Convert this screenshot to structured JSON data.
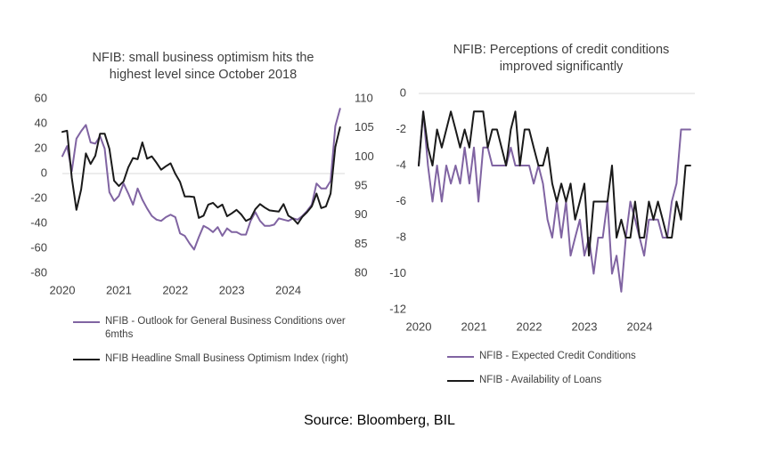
{
  "source": "Source: Bloomberg, BIL",
  "chart_data": [
    {
      "type": "line",
      "title": "NFIB: small business optimism hits the highest level since October 2018",
      "title_lines": [
        "NFIB: small business optimism hits the",
        "highest level since October 2018"
      ],
      "x_ticks": [
        "2020",
        "2021",
        "2022",
        "2023",
        "2024"
      ],
      "ylim": [
        -80,
        60
      ],
      "y_ticks": [
        "60",
        "40",
        "20",
        "0",
        "-20",
        "-40",
        "-60",
        "-80"
      ],
      "y2lim": [
        80,
        110
      ],
      "y2_ticks": [
        "110",
        "105",
        "100",
        "95",
        "90",
        "85",
        "80"
      ],
      "legend_placement": "bottom",
      "series": [
        {
          "name": "NFIB - Outlook for General Business Conditions over 6mths",
          "legend_lines": [
            "NFIB - Outlook for General Business Conditions over",
            "6mths"
          ],
          "axis": "left",
          "color": "#8064A2",
          "x": [
            2020.0,
            2020.083,
            2020.167,
            2020.25,
            2020.333,
            2020.417,
            2020.5,
            2020.583,
            2020.667,
            2020.75,
            2020.833,
            2020.917,
            2021.0,
            2021.083,
            2021.167,
            2021.25,
            2021.333,
            2021.417,
            2021.5,
            2021.583,
            2021.667,
            2021.75,
            2021.833,
            2021.917,
            2022.0,
            2022.083,
            2022.167,
            2022.25,
            2022.333,
            2022.417,
            2022.5,
            2022.583,
            2022.667,
            2022.75,
            2022.833,
            2022.917,
            2023.0,
            2023.083,
            2023.167,
            2023.25,
            2023.333,
            2023.417,
            2023.5,
            2023.583,
            2023.667,
            2023.75,
            2023.833,
            2023.917,
            2024.0,
            2024.083,
            2024.167,
            2024.25,
            2024.333,
            2024.417,
            2024.5,
            2024.583,
            2024.667,
            2024.75,
            2024.833,
            2024.917
          ],
          "values": [
            14,
            22,
            2,
            28,
            34,
            39,
            25,
            24,
            30,
            20,
            -15,
            -22,
            -18,
            -8,
            -16,
            -25,
            -12,
            -21,
            -28,
            -34,
            -37,
            -38,
            -35,
            -33,
            -35,
            -48,
            -50,
            -56,
            -61,
            -51,
            -42,
            -44,
            -47,
            -43,
            -50,
            -44,
            -47,
            -47,
            -49,
            -49,
            -38,
            -31,
            -38,
            -42,
            -42,
            -41,
            -36,
            -37,
            -38,
            -36,
            -37,
            -34,
            -30,
            -25,
            -8,
            -12,
            -12,
            -6,
            38,
            52
          ]
        },
        {
          "name": "NFIB Headline Small Business Optimism Index (right)",
          "legend_lines": [
            "NFIB Headline Small Business Optimism Index (right)"
          ],
          "axis": "right",
          "color": "#1A1A1A",
          "x": [
            2020.0,
            2020.083,
            2020.167,
            2020.25,
            2020.333,
            2020.417,
            2020.5,
            2020.583,
            2020.667,
            2020.75,
            2020.833,
            2020.917,
            2021.0,
            2021.083,
            2021.167,
            2021.25,
            2021.333,
            2021.417,
            2021.5,
            2021.583,
            2021.667,
            2021.75,
            2021.833,
            2021.917,
            2022.0,
            2022.083,
            2022.167,
            2022.25,
            2022.333,
            2022.417,
            2022.5,
            2022.583,
            2022.667,
            2022.75,
            2022.833,
            2022.917,
            2023.0,
            2023.083,
            2023.167,
            2023.25,
            2023.333,
            2023.417,
            2023.5,
            2023.583,
            2023.667,
            2023.75,
            2023.833,
            2023.917,
            2024.0,
            2024.083,
            2024.167,
            2024.25,
            2024.333,
            2024.417,
            2024.5,
            2024.583,
            2024.667,
            2024.75,
            2024.833,
            2024.917
          ],
          "values": [
            104.3,
            104.5,
            96.4,
            90.9,
            94.4,
            100.6,
            98.8,
            100.2,
            104,
            104,
            101.4,
            95.9,
            95,
            95.8,
            98.2,
            99.8,
            99.6,
            102.5,
            99.7,
            100.1,
            99,
            97.8,
            98.4,
            98.9,
            97.1,
            95.7,
            93.2,
            93.2,
            93.1,
            89.5,
            89.9,
            91.8,
            92.1,
            91.3,
            91.8,
            89.8,
            90.3,
            90.9,
            90.1,
            89,
            89.4,
            91,
            91.9,
            91.3,
            90.8,
            90.7,
            90.6,
            91.9,
            89.9,
            89.4,
            88.5,
            89.7,
            90.5,
            91.5,
            93.7,
            91.2,
            91.5,
            93.7,
            101.7,
            105.1
          ]
        }
      ]
    },
    {
      "type": "line",
      "title": "NFIB: Perceptions of credit conditions improved significantly",
      "title_lines": [
        "NFIB: Perceptions of credit conditions",
        "improved significantly"
      ],
      "x_ticks": [
        "2020",
        "2021",
        "2022",
        "2023",
        "2024"
      ],
      "ylim": [
        -12,
        0
      ],
      "y_ticks": [
        "0",
        "-2",
        "-4",
        "-6",
        "-8",
        "-10",
        "-12"
      ],
      "legend_placement": "bottom",
      "series": [
        {
          "name": "NFIB - Expected Credit Conditions",
          "legend_lines": [
            "NFIB - Expected Credit Conditions"
          ],
          "color": "#8064A2",
          "x": [
            2020.0,
            2020.083,
            2020.167,
            2020.25,
            2020.333,
            2020.417,
            2020.5,
            2020.583,
            2020.667,
            2020.75,
            2020.833,
            2020.917,
            2021.0,
            2021.083,
            2021.167,
            2021.25,
            2021.333,
            2021.417,
            2021.5,
            2021.583,
            2021.667,
            2021.75,
            2021.833,
            2021.917,
            2022.0,
            2022.083,
            2022.167,
            2022.25,
            2022.333,
            2022.417,
            2022.5,
            2022.583,
            2022.667,
            2022.75,
            2022.833,
            2022.917,
            2023.0,
            2023.083,
            2023.167,
            2023.25,
            2023.333,
            2023.417,
            2023.5,
            2023.583,
            2023.667,
            2023.75,
            2023.833,
            2023.917,
            2024.0,
            2024.083,
            2024.167,
            2024.25,
            2024.333,
            2024.417,
            2024.5,
            2024.583,
            2024.667,
            2024.75,
            2024.833,
            2024.917
          ],
          "values": [
            -4,
            -1,
            -4,
            -6,
            -4,
            -6,
            -4,
            -5,
            -4,
            -5,
            -3,
            -5,
            -3,
            -6,
            -3,
            -3,
            -4,
            -4,
            -4,
            -4,
            -3,
            -4,
            -4,
            -4,
            -4,
            -5,
            -4,
            -5,
            -7,
            -8,
            -6,
            -8,
            -6,
            -9,
            -8,
            -7,
            -9,
            -8,
            -10,
            -8,
            -8,
            -6,
            -10,
            -9,
            -11,
            -8,
            -6,
            -7,
            -8,
            -9,
            -7,
            -7,
            -7,
            -8,
            -8,
            -6,
            -5,
            -2,
            -2,
            -2
          ]
        },
        {
          "name": "NFIB - Availability of Loans",
          "legend_lines": [
            "NFIB - Availability of Loans"
          ],
          "color": "#1A1A1A",
          "x": [
            2020.0,
            2020.083,
            2020.167,
            2020.25,
            2020.333,
            2020.417,
            2020.5,
            2020.583,
            2020.667,
            2020.75,
            2020.833,
            2020.917,
            2021.0,
            2021.083,
            2021.167,
            2021.25,
            2021.333,
            2021.417,
            2021.5,
            2021.583,
            2021.667,
            2021.75,
            2021.833,
            2021.917,
            2022.0,
            2022.083,
            2022.167,
            2022.25,
            2022.333,
            2022.417,
            2022.5,
            2022.583,
            2022.667,
            2022.75,
            2022.833,
            2022.917,
            2023.0,
            2023.083,
            2023.167,
            2023.25,
            2023.333,
            2023.417,
            2023.5,
            2023.583,
            2023.667,
            2023.75,
            2023.833,
            2023.917,
            2024.0,
            2024.083,
            2024.167,
            2024.25,
            2024.333,
            2024.417,
            2024.5,
            2024.583,
            2024.667,
            2024.75,
            2024.833,
            2024.917
          ],
          "values": [
            -4,
            -1,
            -3,
            -4,
            -2,
            -3,
            -2,
            -1,
            -2,
            -3,
            -2,
            -3,
            -1,
            -1,
            -1,
            -3,
            -2,
            -2,
            -3,
            -4,
            -2,
            -1,
            -4,
            -2,
            -2,
            -3,
            -4,
            -4,
            -3,
            -5,
            -6,
            -5,
            -6,
            -5,
            -7,
            -6,
            -5,
            -9,
            -6,
            -6,
            -6,
            -6,
            -4,
            -8,
            -7,
            -8,
            -8,
            -6,
            -8,
            -8,
            -6,
            -7,
            -6,
            -7,
            -8,
            -8,
            -6,
            -7,
            -4,
            -4
          ]
        }
      ]
    }
  ]
}
